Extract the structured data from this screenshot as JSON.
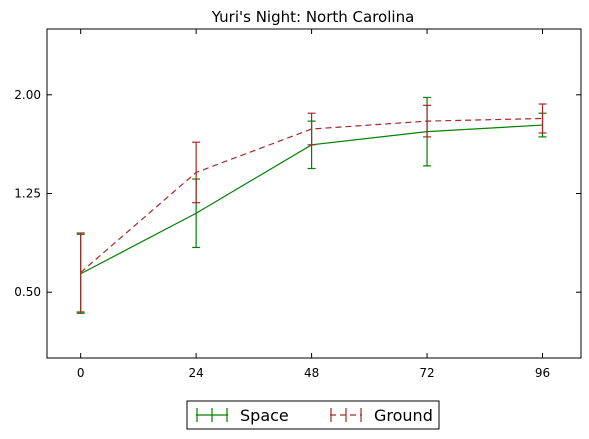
{
  "chart_data": {
    "type": "line",
    "title": "Yuri's Night: North Carolina",
    "xlabel": "",
    "ylabel": "",
    "x": [
      0,
      24,
      48,
      72,
      96
    ],
    "xlim": [
      -7,
      104
    ],
    "ylim": [
      0.0,
      2.5
    ],
    "x_ticks": [
      "0",
      "24",
      "48",
      "72",
      "96"
    ],
    "y_ticks": [
      "0.50",
      "1.25",
      "2.00"
    ],
    "grid": false,
    "legend_position": "bottom-center outside",
    "series": [
      {
        "name": "Space",
        "color": "#008000",
        "line_style": "solid",
        "values": [
          0.64,
          1.1,
          1.62,
          1.72,
          1.77
        ],
        "errors": [
          0.3,
          0.26,
          0.18,
          0.26,
          0.09
        ]
      },
      {
        "name": "Ground",
        "color": "#a52a2a",
        "line_style": "dashed",
        "values": [
          0.65,
          1.41,
          1.74,
          1.8,
          1.82
        ],
        "errors": [
          0.3,
          0.23,
          0.12,
          0.12,
          0.11
        ]
      }
    ]
  }
}
